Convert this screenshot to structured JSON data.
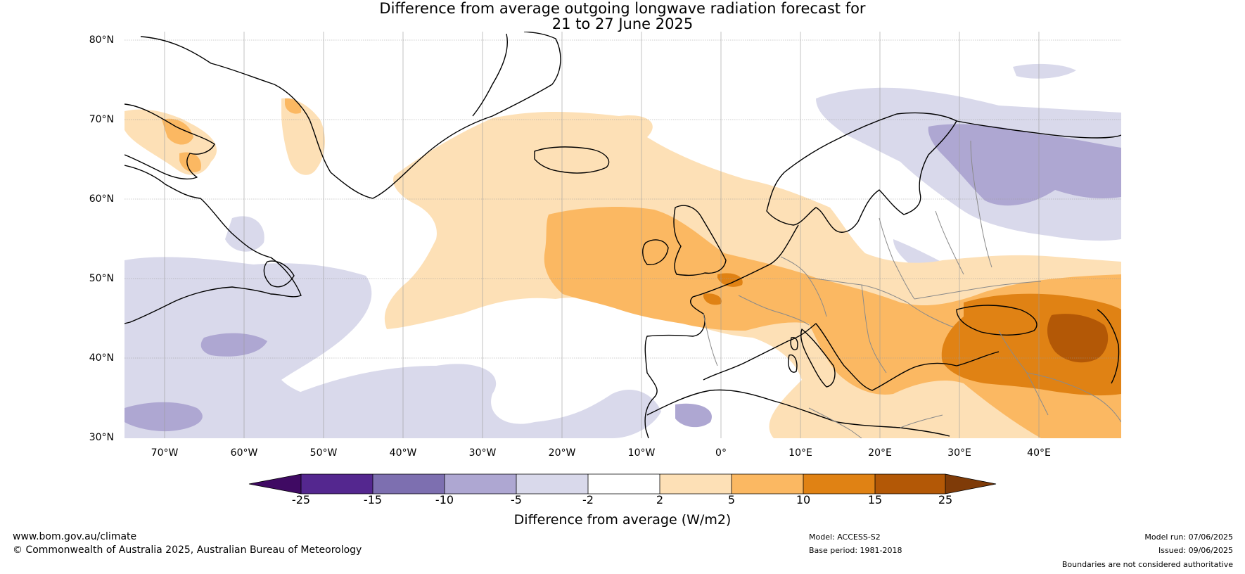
{
  "title": {
    "line1": "Difference from average outgoing longwave radiation forecast for",
    "line2": "21 to 27 June 2025"
  },
  "map": {
    "lat_labels": [
      "80°N",
      "70°N",
      "60°N",
      "50°N",
      "40°N",
      "30°N"
    ],
    "lon_labels": [
      "70°W",
      "60°W",
      "50°W",
      "40°W",
      "30°W",
      "20°W",
      "10°W",
      "0°",
      "10°E",
      "20°E",
      "30°E",
      "40°E"
    ]
  },
  "colorbar": {
    "title": "Difference from average (W/m2)",
    "tick_labels": [
      "-25",
      "-15",
      "-10",
      "-5",
      "-2",
      "2",
      "5",
      "10",
      "15",
      "25"
    ],
    "colors": [
      "#3f0a63",
      "#54278f",
      "#7d6fb0",
      "#aea7d2",
      "#d9d9eb",
      "#ffffff",
      "#fde0b6",
      "#fbb862",
      "#e08214",
      "#b35806",
      "#7f3b08"
    ]
  },
  "footer": {
    "website": "www.bom.gov.au/climate",
    "copyright": "© Commonwealth of Australia 2025, Australian Bureau of Meteorology",
    "model": "Model: ACCESS-S2",
    "base_period": "Base period: 1981-2018",
    "model_run": "Model run: 07/06/2025",
    "issued": "Issued: 09/06/2025",
    "boundaries_note": "Boundaries are not considered authoritative"
  }
}
